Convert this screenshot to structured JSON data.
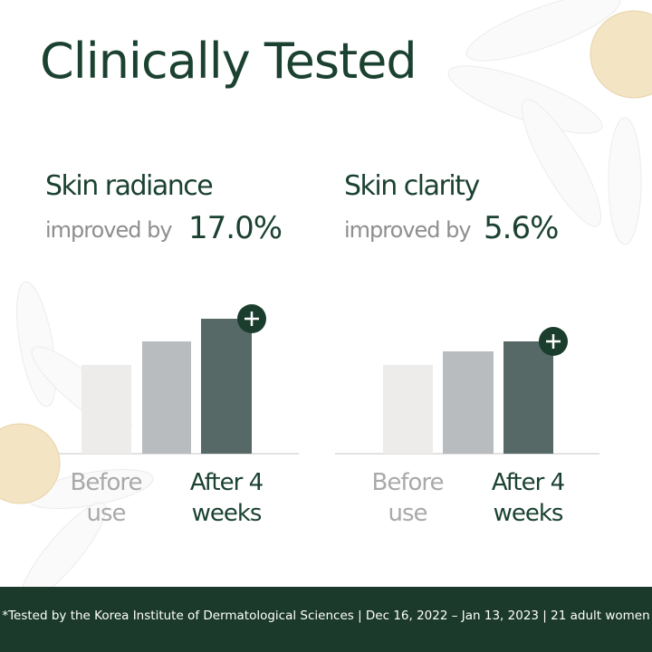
{
  "title": "Clinically Tested",
  "panels": [
    {
      "heading": "Skin radiance",
      "prefix": "improved by",
      "result": "17.0%",
      "labels": [
        "Before use",
        "After 4 weeks"
      ]
    },
    {
      "heading": "Skin clarity",
      "prefix": "improved by",
      "result": "5.6%",
      "labels": [
        "Before use",
        "After 4 weeks"
      ]
    }
  ],
  "footer": "*Tested by the Korea Institute of Dermatological Sciences | Dec 16, 2022 – Jan 13, 2023 | 21 adult women"
}
